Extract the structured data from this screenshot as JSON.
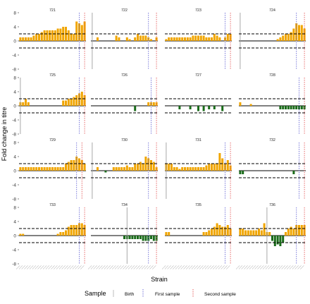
{
  "chart_data": {
    "type": "bar",
    "xlabel": "Strain",
    "ylabel": "Fold change in titre",
    "ylim": [
      -8,
      8
    ],
    "yticks": [
      -8,
      -4,
      0,
      4,
      8
    ],
    "thresholds": [
      -2,
      2
    ],
    "grid": false,
    "legend": {
      "title": "Sample",
      "placement": "bottom",
      "entries": [
        {
          "label": "Birth",
          "color": "#bdbdbd"
        },
        {
          "label": "First sample",
          "color": "#6b6bd6"
        },
        {
          "label": "Second sample",
          "color": "#e45a5a"
        }
      ]
    },
    "colors": {
      "positive": "#f0a500",
      "negative": "#1a6b1a",
      "reference": "#000000"
    },
    "panels": [
      {
        "label": "721",
        "birth": null,
        "first": 22,
        "second": 24,
        "values": [
          1,
          1,
          1,
          1,
          1,
          1.5,
          2,
          2,
          2.5,
          3,
          3,
          3,
          3,
          3,
          3.5,
          3.5,
          4,
          4,
          3,
          2,
          2,
          5.5,
          5,
          4.5,
          5.5
        ]
      },
      {
        "label": "722",
        "birth": 0,
        "first": 21,
        "second": 24,
        "values": [
          0,
          0,
          1,
          0,
          0,
          0,
          0,
          0,
          0,
          1.5,
          1,
          0,
          0,
          1,
          0.5,
          0,
          1,
          2,
          1.5,
          1.5,
          1.5,
          1,
          0.5,
          0,
          1
        ]
      },
      {
        "label": "723",
        "birth": null,
        "first": 22,
        "second": 24,
        "values": [
          0.5,
          1,
          1,
          1,
          1,
          1,
          1,
          1,
          1,
          1,
          1.5,
          1.5,
          1.5,
          1.5,
          1.5,
          1,
          1,
          1,
          2,
          1.5,
          1,
          0,
          1,
          2,
          2
        ]
      },
      {
        "label": "724",
        "birth": 0,
        "first": 21,
        "second": 24,
        "values": [
          0,
          0,
          0,
          0,
          0,
          0,
          0,
          0,
          0,
          0,
          0,
          0,
          0,
          0,
          0.5,
          1,
          1.5,
          2,
          2,
          2.5,
          3.5,
          5,
          4.5,
          4.5,
          3.5
        ]
      },
      {
        "label": "725",
        "birth": 0,
        "first": 22,
        "second": 24,
        "values": [
          1,
          1,
          2,
          1,
          0,
          0,
          0,
          0,
          0,
          0,
          0,
          0,
          0,
          0,
          0,
          0,
          1.5,
          1.5,
          2,
          2,
          2.5,
          3,
          3.5,
          4,
          3
        ]
      },
      {
        "label": "726",
        "birth": null,
        "first": 22,
        "second": 24,
        "values": [
          0,
          0,
          0,
          0,
          0,
          0,
          0,
          0,
          0,
          0,
          0,
          0,
          0,
          0,
          0,
          0,
          -1.5,
          0,
          0,
          0,
          0,
          1,
          1,
          1,
          1
        ]
      },
      {
        "label": "727",
        "birth": null,
        "first": null,
        "second": null,
        "values": [
          0,
          0,
          0,
          0,
          0,
          -1,
          0,
          0,
          0,
          -1,
          0,
          0,
          -1.5,
          0,
          -1.5,
          0,
          -1,
          0,
          -1,
          0,
          0,
          -1.5,
          0,
          0,
          0
        ]
      },
      {
        "label": "728",
        "birth": null,
        "first": 22,
        "second": 24,
        "values": [
          1,
          0,
          0,
          0,
          0.5,
          0,
          0,
          0,
          0,
          0,
          0,
          0,
          0,
          0,
          0,
          -1,
          -1,
          -1,
          -1,
          -1,
          -1,
          -1,
          -1,
          -1,
          -1
        ]
      },
      {
        "label": "729",
        "birth": null,
        "first": 21,
        "second": 23,
        "values": [
          1,
          1,
          1,
          1,
          1,
          1,
          1,
          1,
          1,
          1,
          1,
          1,
          1,
          1,
          1,
          1,
          1,
          2,
          2.5,
          3,
          3,
          4,
          3.5,
          3,
          2
        ]
      },
      {
        "label": "730",
        "birth": 0,
        "first": 21,
        "second": 24,
        "values": [
          0,
          0,
          1,
          0,
          0,
          -0.5,
          0,
          0,
          1,
          1,
          1,
          1,
          1,
          1.5,
          1,
          1,
          2,
          2,
          2.5,
          2,
          4,
          3.5,
          3,
          2.5,
          1
        ]
      },
      {
        "label": "731",
        "birth": 0,
        "first": 22,
        "second": 24,
        "values": [
          2,
          2,
          2,
          1,
          1,
          0.5,
          1,
          1,
          1,
          1,
          1,
          1,
          1,
          1,
          1,
          1.5,
          2,
          2,
          2,
          2,
          5,
          3.5,
          2,
          3,
          1.5
        ]
      },
      {
        "label": "732",
        "birth": null,
        "first": 22,
        "second": 24,
        "values": [
          -1,
          -1,
          0,
          0,
          0,
          0,
          0,
          0,
          0,
          0,
          0,
          0,
          0,
          0,
          0,
          0,
          0,
          0,
          0,
          0,
          -1,
          0,
          0,
          0,
          0
        ]
      },
      {
        "label": "733",
        "birth": null,
        "first": 22,
        "second": 24,
        "values": [
          0.5,
          0.5,
          0,
          0,
          0,
          0,
          0,
          0,
          0,
          0,
          0,
          0,
          0,
          0,
          0.5,
          1,
          1,
          1.5,
          2.5,
          3,
          3,
          3,
          3.5,
          3.5,
          3
        ]
      },
      {
        "label": "734",
        "birth": 13,
        "first": 21,
        "second": 24,
        "values": [
          0,
          0,
          0,
          0,
          0,
          0,
          0,
          0,
          0,
          0,
          0,
          0,
          -1,
          -1,
          -1,
          -1,
          -1,
          -1,
          -1,
          -1.5,
          -1.5,
          -1.5,
          -1,
          -1.5,
          -1.5
        ]
      },
      {
        "label": "735",
        "birth": null,
        "first": 22,
        "second": 24,
        "values": [
          1,
          1,
          0,
          0,
          0,
          0,
          0,
          0,
          0,
          0,
          0,
          0,
          0,
          0,
          1,
          1,
          1.5,
          2,
          2.5,
          3.5,
          3,
          2.5,
          2.5,
          3,
          2
        ]
      },
      {
        "label": "736",
        "birth": 10,
        "first": 21,
        "second": 24,
        "values": [
          2,
          2,
          1.5,
          1.5,
          1.5,
          1.5,
          1.5,
          2,
          1.5,
          3.5,
          1,
          1,
          -1.5,
          -3,
          -2.5,
          -3,
          -2,
          1,
          2,
          2.5,
          2,
          3,
          3,
          3,
          3
        ]
      }
    ]
  }
}
